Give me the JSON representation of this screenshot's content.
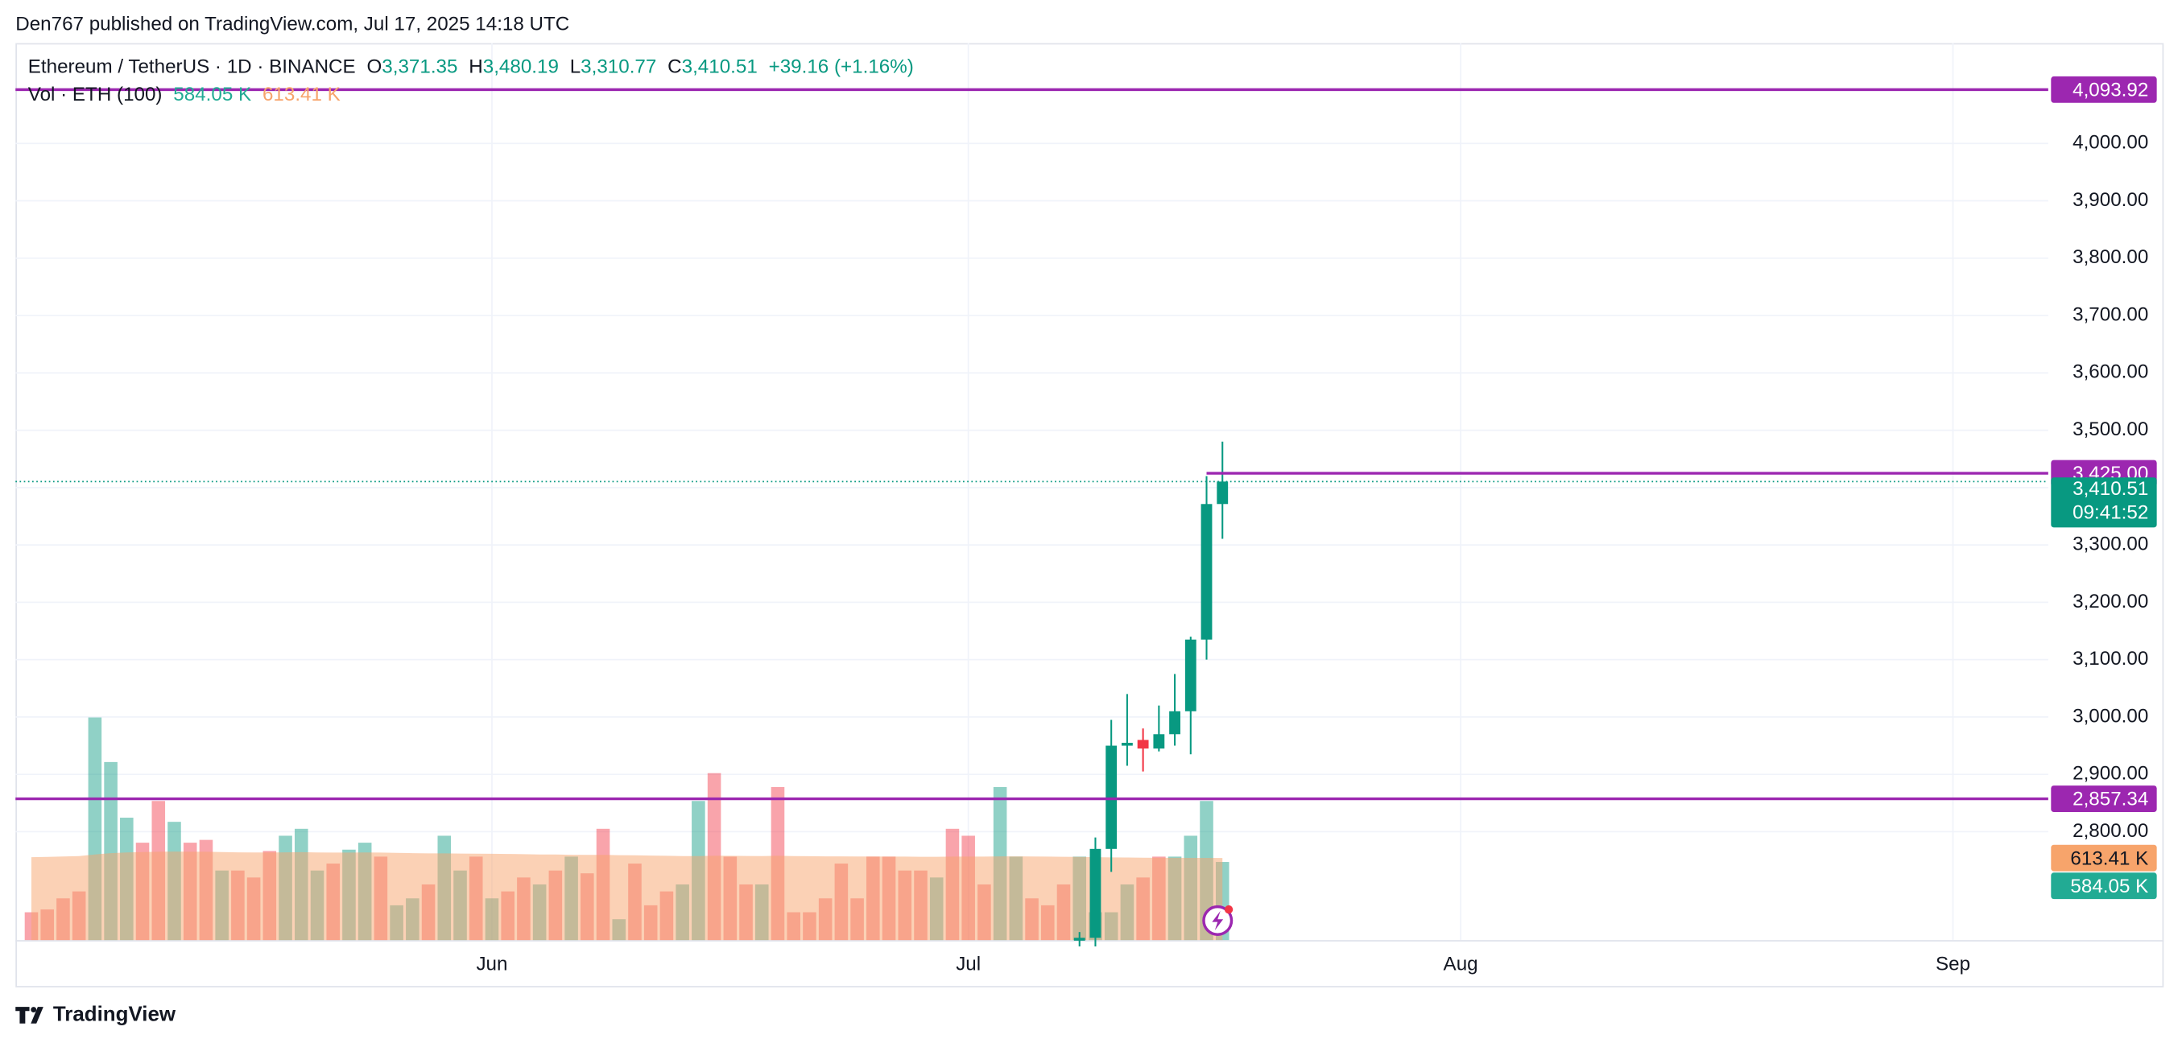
{
  "header": {
    "publisher": "Den767 published on TradingView.com, Jul 17, 2025 14:18 UTC"
  },
  "legend": {
    "symbol": "Ethereum / TetherUS · 1D · BINANCE",
    "ohlc": [
      {
        "key": "O",
        "value": "3,371.35"
      },
      {
        "key": "H",
        "value": "3,480.19"
      },
      {
        "key": "L",
        "value": "3,310.77"
      },
      {
        "key": "C",
        "value": "3,410.51"
      }
    ],
    "change": "+39.16 (+1.16%)",
    "volume_title": "Vol · ETH (100)"
  },
  "footer": {
    "brand": "TradingView"
  },
  "chart_data": {
    "type": "candlestick",
    "x": [
      "2025-07-08",
      "2025-07-09",
      "2025-07-10",
      "2025-07-11",
      "2025-07-12",
      "2025-07-13",
      "2025-07-14",
      "2025-07-15",
      "2025-07-16",
      "2025-07-17"
    ],
    "open": [
      2610,
      2615,
      2770,
      2950,
      2960,
      2945,
      2970,
      3010,
      3135,
      3371.35
    ],
    "high": [
      2625,
      2790,
      2995,
      3040,
      2980,
      3020,
      3075,
      3140,
      3420,
      3480.19
    ],
    "low": [
      2600,
      2600,
      2730,
      2915,
      2905,
      2940,
      2950,
      2935,
      3100,
      3310.77
    ],
    "close": [
      2615,
      2770,
      2950,
      2955,
      2945,
      2970,
      3010,
      3135,
      3371.35,
      3410.51
    ],
    "close_label": "3,410.51",
    "countdown": "09:41:52",
    "color_up": "#089981",
    "color_down": "#f23645",
    "level_color": "#9c27b0",
    "ylim": [
      2611,
      4175
    ],
    "yticks": [
      {
        "value": 2800,
        "label": "2,800.00"
      },
      {
        "value": 2900,
        "label": "2,900.00"
      },
      {
        "value": 3000,
        "label": "3,000.00"
      },
      {
        "value": 3100,
        "label": "3,100.00"
      },
      {
        "value": 3200,
        "label": "3,200.00"
      },
      {
        "value": 3300,
        "label": "3,300.00"
      },
      {
        "value": 3400,
        "label": "3,400.00"
      },
      {
        "value": 3500,
        "label": "3,500.00"
      },
      {
        "value": 3600,
        "label": "3,600.00"
      },
      {
        "value": 3700,
        "label": "3,700.00"
      },
      {
        "value": 3800,
        "label": "3,800.00"
      },
      {
        "value": 3900,
        "label": "3,900.00"
      },
      {
        "value": 4000,
        "label": "4,000.00"
      }
    ],
    "xlim": [
      "2025-05-02",
      "2025-09-07"
    ],
    "xticks": [
      {
        "value": "2025-06-01",
        "label": "Jun"
      },
      {
        "value": "2025-07-01",
        "label": "Jul"
      },
      {
        "value": "2025-08-01",
        "label": "Aug"
      },
      {
        "value": "2025-09-01",
        "label": "Sep"
      }
    ],
    "grid": true,
    "levels": [
      {
        "value": 4093.92,
        "label": "4,093.92"
      },
      {
        "value": 3425,
        "label": "3,425.00",
        "from": "2025-07-16"
      },
      {
        "value": 2857.34,
        "label": "2,857.34"
      }
    ],
    "volume": {
      "start": "2025-05-03",
      "values": [
        208,
        229,
        312,
        364,
        1664,
        1331,
        915,
        728,
        1040,
        884,
        728,
        749,
        520,
        520,
        468,
        666,
        780,
        832,
        520,
        572,
        676,
        728,
        624,
        260,
        312,
        416,
        780,
        520,
        624,
        312,
        364,
        468,
        416,
        520,
        624,
        499,
        832,
        156,
        572,
        260,
        364,
        416,
        1040,
        1248,
        624,
        416,
        416,
        1144,
        208,
        208,
        312,
        572,
        312,
        624,
        624,
        520,
        520,
        468,
        832,
        780,
        416,
        1144,
        624,
        312,
        260,
        416,
        624,
        208,
        208,
        416,
        468,
        624,
        624,
        780,
        1040,
        584.05
      ],
      "colors": [
        "#f23645",
        "#f23645",
        "#f23645",
        "#f23645",
        "#089981",
        "#089981",
        "#089981",
        "#f23645",
        "#f23645",
        "#089981",
        "#f23645",
        "#f23645",
        "#089981",
        "#f23645",
        "#f23645",
        "#f23645",
        "#089981",
        "#089981",
        "#089981",
        "#f23645",
        "#089981",
        "#089981",
        "#f23645",
        "#089981",
        "#089981",
        "#f23645",
        "#089981",
        "#089981",
        "#f23645",
        "#089981",
        "#f23645",
        "#f23645",
        "#089981",
        "#f23645",
        "#089981",
        "#f23645",
        "#f23645",
        "#089981",
        "#f23645",
        "#f23645",
        "#f23645",
        "#089981",
        "#089981",
        "#f23645",
        "#f23645",
        "#f23645",
        "#089981",
        "#f23645",
        "#f23645",
        "#f23645",
        "#f23645",
        "#f23645",
        "#f23645",
        "#f23645",
        "#f23645",
        "#f23645",
        "#f23645",
        "#089981",
        "#f23645",
        "#f23645",
        "#f23645",
        "#089981",
        "#089981",
        "#f23645",
        "#f23645",
        "#f23645",
        "#089981",
        "#089981",
        "#089981",
        "#089981",
        "#f23645",
        "#f23645",
        "#089981",
        "#089981",
        "#089981",
        "#089981"
      ],
      "value_label": "584.05 K",
      "ma": [
        620,
        622,
        625,
        628,
        640,
        650,
        655,
        658,
        660,
        662,
        660,
        660,
        658,
        656,
        655,
        655,
        656,
        657,
        655,
        654,
        654,
        655,
        654,
        652,
        650,
        648,
        648,
        647,
        646,
        645,
        644,
        642,
        640,
        640,
        638,
        637,
        637,
        635,
        634,
        632,
        630,
        628,
        628,
        630,
        630,
        629,
        628,
        630,
        628,
        627,
        626,
        626,
        625,
        625,
        624,
        624,
        623,
        623,
        624,
        624,
        624,
        626,
        626,
        625,
        624,
        623,
        622,
        620,
        618,
        617,
        616,
        615,
        615,
        614,
        614,
        613.41
      ],
      "ma_label": "613.41 K",
      "ma_color": "#f7a46b"
    }
  }
}
